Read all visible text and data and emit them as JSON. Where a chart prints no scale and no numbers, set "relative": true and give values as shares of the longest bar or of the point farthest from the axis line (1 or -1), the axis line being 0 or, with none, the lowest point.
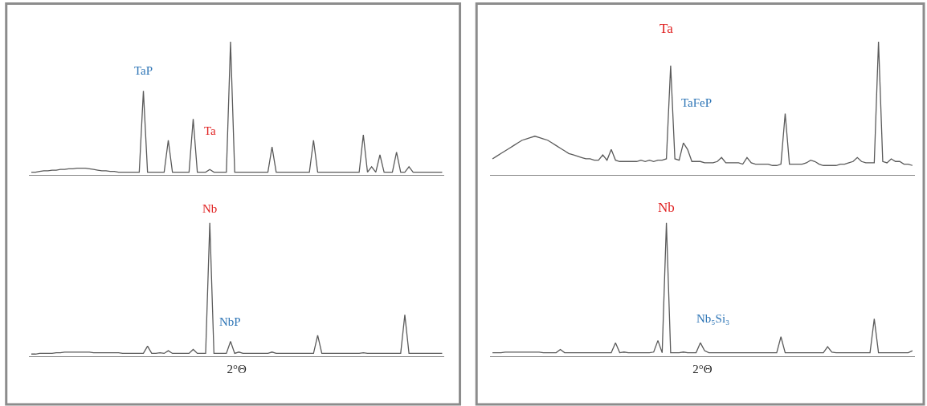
{
  "chart_data": [
    {
      "type": "line",
      "relative": true,
      "annotations": [
        "TaP",
        "Ta"
      ],
      "categories": [
        null,
        null,
        null,
        null,
        null,
        null,
        null,
        null,
        null,
        null,
        null,
        null,
        null,
        null,
        null,
        null,
        null,
        null,
        null,
        null,
        null,
        null,
        null,
        null,
        null,
        null,
        null,
        null,
        null,
        null,
        null,
        null,
        null,
        null,
        null,
        null,
        null,
        null,
        null,
        null,
        null,
        null,
        null,
        null,
        null,
        null,
        null,
        null,
        null,
        null,
        null,
        null,
        null,
        null,
        null,
        null,
        null,
        null,
        null,
        null,
        null,
        null,
        null,
        null,
        null,
        null,
        null,
        null,
        null,
        null,
        null,
        null,
        null,
        null,
        null,
        null,
        null,
        null,
        null,
        null,
        null,
        null,
        null,
        null,
        null,
        null,
        null,
        null,
        null,
        null,
        null,
        null,
        null,
        null,
        null,
        null,
        null,
        null,
        null,
        null
      ],
      "series": [
        {
          "color": "#5a5a5a",
          "values": [
            0.02,
            0.02,
            0.025,
            0.03,
            0.03,
            0.035,
            0.035,
            0.04,
            0.04,
            0.045,
            0.045,
            0.05,
            0.05,
            0.05,
            0.045,
            0.04,
            0.035,
            0.03,
            0.03,
            0.025,
            0.025,
            0.02,
            0.02,
            0.02,
            0.02,
            0.02,
            0.02,
            0.63,
            0.02,
            0.02,
            0.02,
            0.02,
            0.02,
            0.26,
            0.02,
            0.02,
            0.02,
            0.02,
            0.02,
            0.42,
            0.02,
            0.02,
            0.02,
            0.04,
            0.02,
            0.02,
            0.02,
            0.02,
            1,
            0.02,
            0.02,
            0.02,
            0.02,
            0.02,
            0.02,
            0.02,
            0.02,
            0.02,
            0.21,
            0.02,
            0.02,
            0.02,
            0.02,
            0.02,
            0.02,
            0.02,
            0.02,
            0.02,
            0.26,
            0.02,
            0.02,
            0.02,
            0.02,
            0.02,
            0.02,
            0.02,
            0.02,
            0.02,
            0.02,
            0.02,
            0.3,
            0.02,
            0.06,
            0.02,
            0.15,
            0.02,
            0.02,
            0.02,
            0.17,
            0.02,
            0.02,
            0.06,
            0.02,
            0.02,
            0.02,
            0.02,
            0.02,
            0.02,
            0.02,
            0.02
          ]
        }
      ]
    },
    {
      "type": "line",
      "relative": true,
      "xlabel": "2°Θ",
      "annotations": [
        "Nb",
        "NbP"
      ],
      "categories": [
        null,
        null,
        null,
        null,
        null,
        null,
        null,
        null,
        null,
        null,
        null,
        null,
        null,
        null,
        null,
        null,
        null,
        null,
        null,
        null,
        null,
        null,
        null,
        null,
        null,
        null,
        null,
        null,
        null,
        null,
        null,
        null,
        null,
        null,
        null,
        null,
        null,
        null,
        null,
        null,
        null,
        null,
        null,
        null,
        null,
        null,
        null,
        null,
        null,
        null,
        null,
        null,
        null,
        null,
        null,
        null,
        null,
        null,
        null,
        null,
        null,
        null,
        null,
        null,
        null,
        null,
        null,
        null,
        null,
        null,
        null,
        null,
        null,
        null,
        null,
        null,
        null,
        null,
        null,
        null,
        null,
        null,
        null,
        null,
        null,
        null,
        null,
        null,
        null,
        null,
        null,
        null,
        null,
        null,
        null,
        null,
        null,
        null,
        null,
        null
      ],
      "series": [
        {
          "color": "#5a5a5a",
          "values": [
            0.015,
            0.015,
            0.02,
            0.02,
            0.02,
            0.02,
            0.025,
            0.025,
            0.03,
            0.03,
            0.03,
            0.03,
            0.03,
            0.03,
            0.03,
            0.025,
            0.025,
            0.025,
            0.025,
            0.025,
            0.025,
            0.025,
            0.02,
            0.02,
            0.02,
            0.02,
            0.02,
            0.02,
            0.075,
            0.02,
            0.02,
            0.025,
            0.02,
            0.04,
            0.02,
            0.02,
            0.02,
            0.02,
            0.02,
            0.05,
            0.02,
            0.02,
            0.02,
            1,
            0.02,
            0.02,
            0.02,
            0.02,
            0.11,
            0.02,
            0.03,
            0.02,
            0.02,
            0.02,
            0.02,
            0.02,
            0.02,
            0.02,
            0.03,
            0.02,
            0.02,
            0.02,
            0.02,
            0.02,
            0.02,
            0.02,
            0.02,
            0.02,
            0.02,
            0.156,
            0.02,
            0.02,
            0.02,
            0.02,
            0.02,
            0.02,
            0.02,
            0.02,
            0.02,
            0.02,
            0.025,
            0.02,
            0.02,
            0.02,
            0.02,
            0.02,
            0.02,
            0.02,
            0.02,
            0.02,
            0.31,
            0.02,
            0.02,
            0.02,
            0.02,
            0.02,
            0.02,
            0.02,
            0.02,
            0.02
          ]
        }
      ]
    },
    {
      "type": "line",
      "relative": true,
      "annotations": [
        "Ta",
        "TaFeP"
      ],
      "categories": [
        null,
        null,
        null,
        null,
        null,
        null,
        null,
        null,
        null,
        null,
        null,
        null,
        null,
        null,
        null,
        null,
        null,
        null,
        null,
        null,
        null,
        null,
        null,
        null,
        null,
        null,
        null,
        null,
        null,
        null,
        null,
        null,
        null,
        null,
        null,
        null,
        null,
        null,
        null,
        null,
        null,
        null,
        null,
        null,
        null,
        null,
        null,
        null,
        null,
        null,
        null,
        null,
        null,
        null,
        null,
        null,
        null,
        null,
        null,
        null,
        null,
        null,
        null,
        null,
        null,
        null,
        null,
        null,
        null,
        null,
        null,
        null,
        null,
        null,
        null,
        null,
        null,
        null,
        null,
        null,
        null,
        null,
        null,
        null,
        null,
        null,
        null,
        null,
        null,
        null,
        null,
        null,
        null,
        null,
        null,
        null,
        null,
        null,
        null,
        null
      ],
      "series": [
        {
          "color": "#5a5a5a",
          "values": [
            0.12,
            0.14,
            0.16,
            0.18,
            0.2,
            0.22,
            0.24,
            0.26,
            0.27,
            0.28,
            0.29,
            0.28,
            0.27,
            0.26,
            0.24,
            0.22,
            0.2,
            0.18,
            0.16,
            0.15,
            0.14,
            0.13,
            0.12,
            0.12,
            0.11,
            0.11,
            0.15,
            0.11,
            0.19,
            0.11,
            0.1,
            0.1,
            0.1,
            0.1,
            0.1,
            0.11,
            0.1,
            0.11,
            0.1,
            0.11,
            0.11,
            0.12,
            0.82,
            0.12,
            0.11,
            0.24,
            0.19,
            0.1,
            0.1,
            0.1,
            0.09,
            0.09,
            0.09,
            0.1,
            0.13,
            0.09,
            0.09,
            0.09,
            0.09,
            0.08,
            0.13,
            0.09,
            0.08,
            0.08,
            0.08,
            0.08,
            0.07,
            0.07,
            0.08,
            0.46,
            0.08,
            0.08,
            0.08,
            0.08,
            0.09,
            0.11,
            0.1,
            0.08,
            0.07,
            0.07,
            0.07,
            0.07,
            0.08,
            0.08,
            0.09,
            0.1,
            0.13,
            0.1,
            0.09,
            0.09,
            0.09,
            1,
            0.1,
            0.09,
            0.12,
            0.1,
            0.1,
            0.08,
            0.08,
            0.07
          ]
        }
      ]
    },
    {
      "type": "line",
      "relative": true,
      "xlabel": "2°Θ",
      "annotations": [
        "Nb",
        "Nb₅Si₃"
      ],
      "categories": [
        null,
        null,
        null,
        null,
        null,
        null,
        null,
        null,
        null,
        null,
        null,
        null,
        null,
        null,
        null,
        null,
        null,
        null,
        null,
        null,
        null,
        null,
        null,
        null,
        null,
        null,
        null,
        null,
        null,
        null,
        null,
        null,
        null,
        null,
        null,
        null,
        null,
        null,
        null,
        null,
        null,
        null,
        null,
        null,
        null,
        null,
        null,
        null,
        null,
        null,
        null,
        null,
        null,
        null,
        null,
        null,
        null,
        null,
        null,
        null,
        null,
        null,
        null,
        null,
        null,
        null,
        null,
        null,
        null,
        null,
        null,
        null,
        null,
        null,
        null,
        null,
        null,
        null,
        null,
        null,
        null,
        null,
        null,
        null,
        null,
        null,
        null,
        null,
        null,
        null,
        null,
        null,
        null,
        null,
        null,
        null,
        null,
        null,
        null,
        null
      ],
      "series": [
        {
          "color": "#5a5a5a",
          "values": [
            0.025,
            0.025,
            0.025,
            0.03,
            0.03,
            0.03,
            0.03,
            0.03,
            0.03,
            0.03,
            0.03,
            0.03,
            0.025,
            0.025,
            0.025,
            0.025,
            0.05,
            0.025,
            0.025,
            0.025,
            0.025,
            0.025,
            0.025,
            0.025,
            0.025,
            0.025,
            0.025,
            0.025,
            0.025,
            0.1,
            0.025,
            0.03,
            0.025,
            0.025,
            0.025,
            0.025,
            0.025,
            0.025,
            0.03,
            0.117,
            0.025,
            1,
            0.025,
            0.025,
            0.025,
            0.03,
            0.025,
            0.025,
            0.025,
            0.1,
            0.04,
            0.025,
            0.025,
            0.025,
            0.025,
            0.025,
            0.025,
            0.025,
            0.025,
            0.025,
            0.025,
            0.025,
            0.025,
            0.025,
            0.025,
            0.025,
            0.025,
            0.025,
            0.145,
            0.025,
            0.025,
            0.025,
            0.025,
            0.025,
            0.025,
            0.025,
            0.025,
            0.025,
            0.025,
            0.07,
            0.03,
            0.025,
            0.025,
            0.025,
            0.025,
            0.025,
            0.025,
            0.025,
            0.025,
            0.025,
            0.28,
            0.025,
            0.025,
            0.025,
            0.025,
            0.025,
            0.025,
            0.025,
            0.025,
            0.04
          ]
        }
      ]
    }
  ]
}
